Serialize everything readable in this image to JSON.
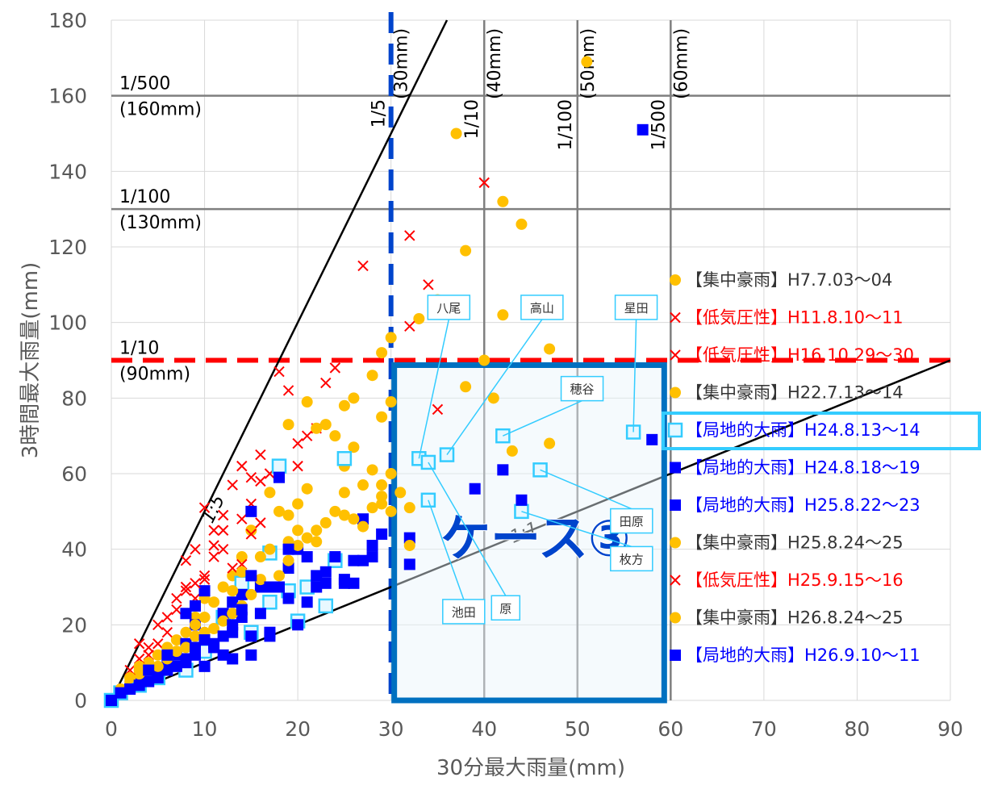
{
  "chart_data": {
    "type": "scatter",
    "title": "",
    "xlabel": "30分最大雨量(mm)",
    "ylabel": "3時間最大雨量(mm)",
    "xlim": [
      0,
      90
    ],
    "ylim": [
      0,
      180
    ],
    "xticks": [
      "0",
      "10",
      "20",
      "30",
      "40",
      "50",
      "60",
      "70",
      "80",
      "90"
    ],
    "yticks": [
      "0",
      "20",
      "40",
      "60",
      "80",
      "100",
      "120",
      "140",
      "160",
      "180"
    ],
    "grid": true,
    "legend_position": "right",
    "colors": {
      "orange": "#ffc000",
      "red": "#ff0000",
      "blue": "#0000ff",
      "light_blue": "#33ccff",
      "case_box": "#0070c0",
      "case_text": "#0044cc"
    },
    "return_periods_3h": [
      {
        "label": "1/10",
        "value_label": "(90mm)",
        "y": 90
      },
      {
        "label": "1/100",
        "value_label": "(130mm)",
        "y": 130
      },
      {
        "label": "1/500",
        "value_label": "(160mm)",
        "y": 160
      }
    ],
    "return_periods_30min": [
      {
        "label": "1/5",
        "value_label": "(30mm)",
        "x": 30
      },
      {
        "label": "1/10",
        "value_label": "(40mm)",
        "x": 40
      },
      {
        "label": "1/100",
        "value_label": "(50mm)",
        "x": 50
      },
      {
        "label": "1/500",
        "value_label": "(60mm)",
        "x": 60
      }
    ],
    "ratio_lines": [
      {
        "label": "1:5",
        "slope": 5
      },
      {
        "label": "1:1",
        "slope": 1
      }
    ],
    "case_box": {
      "label": "ケース③",
      "x": [
        30,
        60
      ],
      "y": [
        0,
        90
      ]
    },
    "labeled_points": [
      {
        "name": "八尾",
        "x": 33,
        "y": 64
      },
      {
        "name": "高山",
        "x": 36,
        "y": 65
      },
      {
        "name": "星田",
        "x": 56,
        "y": 71
      },
      {
        "name": "穂谷",
        "x": 42,
        "y": 70
      },
      {
        "name": "田原",
        "x": 46,
        "y": 61
      },
      {
        "name": "枚方",
        "x": 44,
        "y": 50
      },
      {
        "name": "池田",
        "x": 34,
        "y": 53
      },
      {
        "name": "原",
        "x": 34,
        "y": 63
      }
    ],
    "series": [
      {
        "name": "【集中豪雨】H7.7.03～04",
        "marker": "circle",
        "color": "#ffc000",
        "legend_color": "#333333",
        "points": [
          [
            35,
            106
          ],
          [
            37,
            150
          ],
          [
            38,
            119
          ],
          [
            42,
            132
          ],
          [
            44,
            126
          ],
          [
            51,
            169
          ],
          [
            33,
            101
          ],
          [
            42,
            102
          ],
          [
            40,
            90
          ],
          [
            47,
            93
          ],
          [
            38,
            83
          ],
          [
            41,
            80
          ],
          [
            43,
            66
          ],
          [
            47,
            68
          ],
          [
            30,
            79
          ],
          [
            29,
            75
          ]
        ]
      },
      {
        "name": "【低気圧性】H11.8.10～11",
        "marker": "x",
        "color": "#ff0000",
        "legend_color": "#ff0000",
        "points": [
          [
            27,
            115
          ],
          [
            32,
            123
          ],
          [
            34,
            110
          ],
          [
            40,
            137
          ],
          [
            32,
            99
          ],
          [
            35,
            77
          ],
          [
            18,
            87
          ],
          [
            21,
            70
          ],
          [
            14,
            62
          ],
          [
            13,
            57
          ],
          [
            16,
            58
          ],
          [
            12,
            49
          ],
          [
            11,
            45
          ],
          [
            10,
            51
          ],
          [
            9,
            40
          ],
          [
            8,
            37
          ],
          [
            8,
            30
          ],
          [
            7,
            24
          ],
          [
            5,
            15
          ],
          [
            3,
            15
          ]
        ]
      },
      {
        "name": "【低気圧性】H16.10.29～30",
        "marker": "x",
        "color": "#ff0000",
        "legend_color": "#ff0000",
        "points": [
          [
            24,
            88
          ],
          [
            23,
            84
          ],
          [
            19,
            82
          ],
          [
            22,
            72
          ],
          [
            20,
            68
          ],
          [
            20,
            62
          ],
          [
            17,
            60
          ],
          [
            15,
            52
          ],
          [
            14,
            48
          ],
          [
            12,
            45
          ],
          [
            11,
            38
          ],
          [
            10,
            32
          ],
          [
            9,
            27
          ],
          [
            6,
            18
          ],
          [
            4,
            12
          ]
        ]
      },
      {
        "name": "【集中豪雨】H22.7.13～14",
        "marker": "circle",
        "color": "#ffc000",
        "legend_color": "#333333",
        "points": [
          [
            29,
            92
          ],
          [
            30,
            96
          ],
          [
            28,
            86
          ],
          [
            26,
            80
          ],
          [
            25,
            78
          ],
          [
            21,
            79
          ],
          [
            19,
            73
          ],
          [
            22,
            72
          ],
          [
            24,
            70
          ],
          [
            26,
            67
          ],
          [
            25,
            62
          ],
          [
            28,
            61
          ],
          [
            29,
            57
          ],
          [
            19,
            49
          ],
          [
            18,
            50
          ],
          [
            17,
            55
          ],
          [
            15,
            45
          ],
          [
            14,
            38
          ],
          [
            13,
            33
          ],
          [
            12,
            30
          ],
          [
            10,
            27
          ],
          [
            9,
            22
          ],
          [
            7,
            16
          ],
          [
            6,
            12
          ],
          [
            4,
            10
          ],
          [
            3,
            8
          ],
          [
            2,
            5
          ],
          [
            1,
            3
          ]
        ]
      },
      {
        "name": "【局地的大雨】H24.8.13～14",
        "marker": "square-open",
        "color": "#33ccff",
        "legend_color": "#0000ff",
        "points": [
          [
            33,
            64
          ],
          [
            34,
            63
          ],
          [
            34,
            53
          ],
          [
            36,
            65
          ],
          [
            42,
            70
          ],
          [
            44,
            50
          ],
          [
            46,
            61
          ],
          [
            56,
            71
          ],
          [
            18,
            62
          ],
          [
            17,
            39
          ],
          [
            17,
            26
          ],
          [
            19,
            29
          ],
          [
            21,
            30
          ],
          [
            20,
            21
          ],
          [
            23,
            25
          ],
          [
            24,
            37
          ],
          [
            25,
            64
          ],
          [
            15,
            18
          ],
          [
            14,
            31
          ],
          [
            12,
            22
          ],
          [
            10,
            13
          ],
          [
            8,
            8
          ],
          [
            5,
            6
          ],
          [
            3,
            4
          ],
          [
            1,
            2
          ],
          [
            0,
            0
          ]
        ]
      },
      {
        "name": "【局地的大雨】H24.8.18～19",
        "marker": "square",
        "color": "#0000ff",
        "legend_color": "#0000ff",
        "points": [
          [
            57,
            151
          ],
          [
            58,
            69
          ],
          [
            39,
            56
          ],
          [
            42,
            61
          ],
          [
            44,
            53
          ],
          [
            32,
            43
          ],
          [
            32,
            36
          ],
          [
            29,
            44
          ],
          [
            27,
            48
          ],
          [
            28,
            41
          ],
          [
            28,
            38
          ],
          [
            26,
            31
          ],
          [
            25,
            32
          ],
          [
            24,
            38
          ],
          [
            23,
            31
          ],
          [
            22,
            30
          ],
          [
            21,
            26
          ],
          [
            20,
            40
          ],
          [
            19,
            35
          ],
          [
            18,
            30
          ],
          [
            17,
            18
          ],
          [
            16,
            23
          ],
          [
            15,
            17
          ],
          [
            14,
            22
          ],
          [
            13,
            18
          ],
          [
            12,
            12
          ],
          [
            11,
            15
          ],
          [
            10,
            9
          ],
          [
            8,
            11
          ],
          [
            6,
            8
          ],
          [
            4,
            5
          ],
          [
            2,
            3
          ]
        ]
      },
      {
        "name": "【局地的大雨】H25.8.22～23",
        "marker": "square",
        "color": "#0000ff",
        "legend_color": "#0000ff",
        "points": [
          [
            18,
            59
          ],
          [
            15,
            50
          ],
          [
            14,
            28
          ],
          [
            13,
            26
          ],
          [
            12,
            23
          ],
          [
            10,
            29
          ],
          [
            9,
            25
          ],
          [
            9,
            20
          ],
          [
            8,
            23
          ],
          [
            8,
            15
          ],
          [
            7,
            12
          ],
          [
            6,
            10
          ],
          [
            5,
            7
          ],
          [
            3,
            5
          ],
          [
            20,
            20
          ],
          [
            16,
            30
          ],
          [
            13,
            11
          ],
          [
            11,
            14
          ],
          [
            9,
            12
          ],
          [
            7,
            9
          ]
        ]
      },
      {
        "name": "【集中豪雨】H25.8.24～25",
        "marker": "circle",
        "color": "#ffc000",
        "legend_color": "#333333",
        "points": [
          [
            25,
            49
          ],
          [
            26,
            48
          ],
          [
            27,
            46
          ],
          [
            28,
            51
          ],
          [
            29,
            52
          ],
          [
            30,
            50
          ],
          [
            32,
            51
          ],
          [
            32,
            41
          ],
          [
            21,
            43
          ],
          [
            22,
            42
          ],
          [
            20,
            41
          ],
          [
            20,
            45
          ],
          [
            19,
            37
          ],
          [
            18,
            33
          ],
          [
            16,
            32
          ],
          [
            15,
            28
          ],
          [
            14,
            25
          ],
          [
            13,
            23
          ],
          [
            12,
            21
          ],
          [
            11,
            19
          ],
          [
            10,
            18
          ],
          [
            9,
            17
          ],
          [
            8,
            14
          ],
          [
            7,
            13
          ],
          [
            6,
            11
          ],
          [
            5,
            9
          ],
          [
            4,
            8
          ],
          [
            3,
            7
          ],
          [
            2,
            6
          ]
        ]
      },
      {
        "name": "【低気圧性】H25.9.15～16",
        "marker": "x",
        "color": "#ff0000",
        "legend_color": "#ff0000",
        "points": [
          [
            16,
            47
          ],
          [
            15,
            44
          ],
          [
            14,
            36
          ],
          [
            13,
            35
          ],
          [
            12,
            40
          ],
          [
            11,
            41
          ],
          [
            10,
            33
          ],
          [
            9,
            31
          ],
          [
            8,
            29
          ],
          [
            7,
            27
          ],
          [
            6,
            22
          ],
          [
            5,
            20
          ],
          [
            4,
            14
          ],
          [
            3,
            11
          ],
          [
            2,
            8
          ],
          [
            16,
            65
          ],
          [
            15,
            59
          ]
        ]
      },
      {
        "name": "【集中豪雨】H26.8.24～25",
        "marker": "circle",
        "color": "#ffc000",
        "legend_color": "#333333",
        "points": [
          [
            30,
            60
          ],
          [
            31,
            55
          ],
          [
            29,
            54
          ],
          [
            27,
            57
          ],
          [
            25,
            55
          ],
          [
            24,
            50
          ],
          [
            23,
            47
          ],
          [
            22,
            45
          ],
          [
            19,
            42
          ],
          [
            17,
            40
          ],
          [
            16,
            38
          ],
          [
            14,
            34
          ],
          [
            13,
            29
          ],
          [
            11,
            26
          ],
          [
            10,
            22
          ],
          [
            9,
            20
          ],
          [
            8,
            18
          ],
          [
            6,
            14
          ],
          [
            5,
            12
          ],
          [
            3,
            9
          ],
          [
            2,
            6
          ],
          [
            1,
            3
          ],
          [
            23,
            73
          ],
          [
            21,
            56
          ],
          [
            20,
            52
          ]
        ]
      },
      {
        "name": "【局地的大雨】H26.9.10～11",
        "marker": "square",
        "color": "#0000ff",
        "legend_color": "#0000ff",
        "points": [
          [
            27,
            37
          ],
          [
            26,
            37
          ],
          [
            25,
            31
          ],
          [
            23,
            34
          ],
          [
            22,
            33
          ],
          [
            21,
            38
          ],
          [
            19,
            40
          ],
          [
            17,
            30
          ],
          [
            15,
            33
          ],
          [
            14,
            24
          ],
          [
            13,
            20
          ],
          [
            12,
            17
          ],
          [
            10,
            16
          ],
          [
            9,
            14
          ],
          [
            8,
            10
          ],
          [
            6,
            12
          ],
          [
            5,
            6
          ],
          [
            4,
            8
          ],
          [
            3,
            4
          ],
          [
            2,
            3
          ],
          [
            1,
            2
          ],
          [
            0,
            0
          ],
          [
            15,
            12
          ],
          [
            17,
            17
          ],
          [
            19,
            27
          ]
        ]
      }
    ]
  }
}
